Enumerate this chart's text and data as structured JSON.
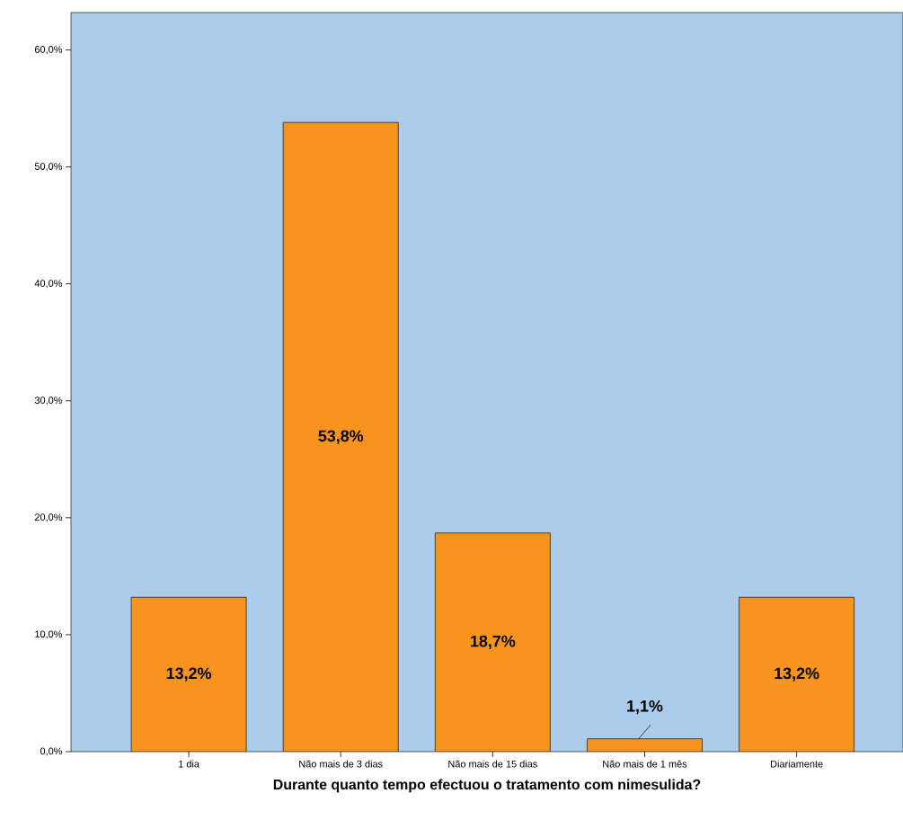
{
  "chart_data": {
    "type": "bar",
    "xlabel": "Durante quanto tempo efectuou o tratamento com nimesulida?",
    "categories": [
      "1 dia",
      "Não mais de 3 dias",
      "Não mais de 15 dias",
      "Não mais de 1 mês",
      "Diariamente"
    ],
    "values": [
      13.2,
      53.8,
      18.7,
      1.1,
      13.2
    ],
    "value_labels": [
      "13,2%",
      "53,8%",
      "18,7%",
      "1,1%",
      "13,2%"
    ],
    "color": "#f7941e",
    "ylim": [
      0,
      63.2
    ],
    "yticks": [
      {
        "value": 0,
        "label": "0,0%"
      },
      {
        "value": 10,
        "label": "10,0%"
      },
      {
        "value": 20,
        "label": "20,0%"
      },
      {
        "value": 30,
        "label": "30,0%"
      },
      {
        "value": 40,
        "label": "40,0%"
      },
      {
        "value": 50,
        "label": "50,0%"
      },
      {
        "value": 60,
        "label": "60,0%"
      }
    ],
    "grid": false
  }
}
